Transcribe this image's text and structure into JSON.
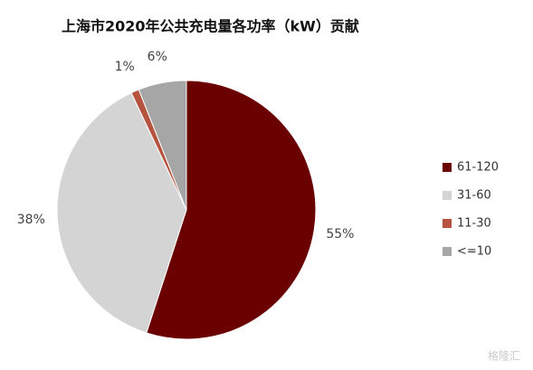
{
  "chart_data": {
    "type": "pie",
    "title": "上海市2020年公共充电量各功率（kW）贡献",
    "categories": [
      "61-120",
      "31-60",
      "11-30",
      "<=10"
    ],
    "values": [
      55,
      38,
      1,
      6
    ],
    "value_labels": [
      "55%",
      "38%",
      "1%",
      "6%"
    ],
    "colors": [
      "#6b0000",
      "#d4d4d4",
      "#b5533f",
      "#a6a6a6"
    ],
    "legend": "right",
    "watermark": "格隆汇"
  }
}
